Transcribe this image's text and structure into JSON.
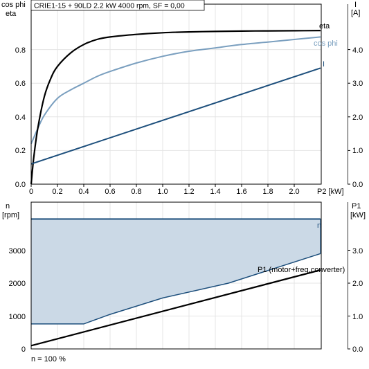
{
  "colors": {
    "eta": "#000000",
    "cos_phi": "#7a9fbf",
    "current": "#1d4f7c",
    "speed": "#1d4f7c",
    "speed_band_fill": "#cbd9e6",
    "p1": "#000000",
    "axis": "#000000",
    "grid": "#e4e4e4"
  },
  "chart_data": [
    {
      "type": "line",
      "title": "CRIE1-15 + 90LD   2.2 kW   4000 rpm, SF = 0,00",
      "xlabel": "P2 [kW]",
      "ylabel_left": [
        "cos phi",
        "eta"
      ],
      "ylabel_right": [
        "I",
        "[A]"
      ],
      "xlim": [
        0,
        2.3
      ],
      "ylim_left": [
        0,
        1.0
      ],
      "ylim_right": [
        0,
        5.0
      ],
      "x_ticks": [
        "0",
        "0.2",
        "0.4",
        "0.6",
        "0.8",
        "1.0",
        "1.2",
        "1.4",
        "1.6",
        "1.8",
        "2.0"
      ],
      "x_tick_values": [
        0,
        0.2,
        0.4,
        0.6,
        0.8,
        1.0,
        1.2,
        1.4,
        1.6,
        1.8,
        2.0
      ],
      "y_ticks_left": [
        "0.0",
        "0.2",
        "0.4",
        "0.6",
        "0.8"
      ],
      "y_tick_values_left": [
        0,
        0.2,
        0.4,
        0.6,
        0.8
      ],
      "y_ticks_right": [
        "0.0",
        "1.0",
        "2.0",
        "3.0",
        "4.0"
      ],
      "y_tick_values_right": [
        0,
        1,
        2,
        3,
        4
      ],
      "grid": true,
      "series": [
        {
          "name": "eta",
          "axis": "left",
          "x": [
            0.0,
            0.02,
            0.05,
            0.1,
            0.15,
            0.2,
            0.3,
            0.4,
            0.5,
            0.6,
            0.8,
            1.0,
            1.2,
            1.4,
            1.6,
            1.8,
            2.0,
            2.2
          ],
          "y": [
            0.0,
            0.16,
            0.33,
            0.52,
            0.63,
            0.7,
            0.78,
            0.83,
            0.86,
            0.875,
            0.89,
            0.9,
            0.905,
            0.908,
            0.91,
            0.911,
            0.912,
            0.913
          ]
        },
        {
          "name": "cos phi",
          "axis": "left",
          "x": [
            0.0,
            0.05,
            0.1,
            0.2,
            0.3,
            0.4,
            0.5,
            0.6,
            0.8,
            1.0,
            1.2,
            1.4,
            1.6,
            1.8,
            2.0,
            2.2
          ],
          "y": [
            0.24,
            0.33,
            0.41,
            0.51,
            0.56,
            0.6,
            0.64,
            0.67,
            0.72,
            0.76,
            0.79,
            0.81,
            0.83,
            0.845,
            0.86,
            0.875
          ]
        },
        {
          "name": "I",
          "axis": "right",
          "x": [
            0.0,
            2.2
          ],
          "y": [
            0.6,
            3.45
          ]
        }
      ]
    },
    {
      "type": "area",
      "xlim": [
        0,
        2.3
      ],
      "ylabel_left": [
        "n",
        "[rpm]"
      ],
      "ylabel_right": [
        "P1",
        "[kW]"
      ],
      "ylim_left": [
        0,
        4000
      ],
      "ylim_right": [
        0,
        4.2
      ],
      "y_ticks_left": [
        "0",
        "1000",
        "2000",
        "3000"
      ],
      "y_tick_values_left": [
        0,
        1000,
        2000,
        3000
      ],
      "y_ticks_right": [
        "0.0",
        "1.0",
        "2.0",
        "3.0"
      ],
      "y_tick_values_right": [
        0,
        1,
        2,
        3
      ],
      "grid": true,
      "annotation": "n = 100 %",
      "series": [
        {
          "name": "n",
          "axis": "left",
          "x": [
            0.0,
            2.2
          ],
          "y": [
            3950,
            3950
          ]
        },
        {
          "axis": "left",
          "x": [
            0.0,
            0.4,
            0.6,
            1.0,
            1.5,
            2.2
          ],
          "y": [
            760,
            760,
            1050,
            1550,
            2000,
            2900
          ]
        },
        {
          "name": "P1 (motor+freq.converter)",
          "axis": "right",
          "x": [
            0.0,
            2.2
          ],
          "y": [
            0.1,
            2.4
          ]
        }
      ]
    }
  ]
}
